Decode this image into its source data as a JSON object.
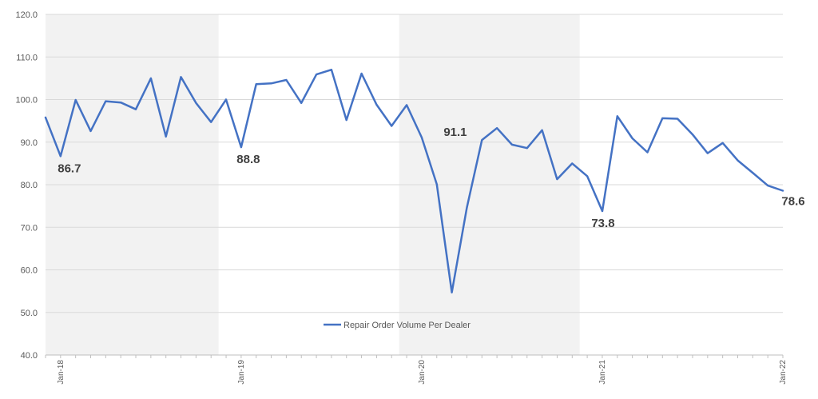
{
  "chart_data": {
    "type": "line",
    "title": "",
    "xlabel": "",
    "ylabel": "",
    "ylim": [
      40,
      120
    ],
    "y_ticks": [
      "40.0",
      "50.0",
      "60.0",
      "70.0",
      "80.0",
      "90.0",
      "100.0",
      "110.0",
      "120.0"
    ],
    "x_tick_labels": [
      "Jan-18",
      "Jan-19",
      "Jan-20",
      "Jan-21",
      "Jan-22"
    ],
    "x_tick_months": [
      1,
      13,
      25,
      37,
      49
    ],
    "grid": "horizontal",
    "legend_position": "bottom-center",
    "shaded_years": [
      "2018",
      "2020"
    ],
    "colors": {
      "line": "#4472C4",
      "shade": "#F2F2F2",
      "grid": "#D9D9D9"
    },
    "series": [
      {
        "name": "Repair Order Volume Per Dealer",
        "months": [
          0,
          1,
          2,
          3,
          4,
          5,
          6,
          7,
          8,
          9,
          10,
          11,
          12,
          13,
          14,
          15,
          16,
          17,
          18,
          19,
          20,
          21,
          22,
          23,
          24,
          25,
          26,
          27,
          28,
          29,
          30,
          31,
          32,
          33,
          34,
          35,
          36,
          37,
          38,
          39,
          40,
          41,
          42,
          43,
          44,
          45,
          46,
          47,
          48,
          49
        ],
        "values": [
          95.8,
          86.7,
          99.9,
          92.6,
          99.6,
          99.3,
          97.7,
          105.0,
          91.3,
          105.3,
          99.2,
          94.7,
          100.0,
          88.8,
          103.6,
          103.8,
          104.6,
          99.2,
          105.9,
          107.0,
          95.2,
          106.1,
          98.8,
          93.8,
          98.7,
          91.1,
          80.1,
          54.7,
          74.6,
          90.5,
          93.3,
          89.4,
          88.6,
          92.8,
          81.3,
          85.0,
          82.0,
          73.8,
          96.1,
          90.9,
          87.6,
          95.6,
          95.5,
          91.8,
          87.4,
          89.8,
          85.7,
          82.8,
          79.8,
          78.6
        ]
      }
    ],
    "annotations": [
      {
        "month": 1,
        "text": "86.7"
      },
      {
        "month": 13,
        "text": "88.8"
      },
      {
        "month": 25,
        "text": "91.1"
      },
      {
        "month": 37,
        "text": "73.8"
      },
      {
        "month": 49,
        "text": "78.6"
      }
    ]
  }
}
